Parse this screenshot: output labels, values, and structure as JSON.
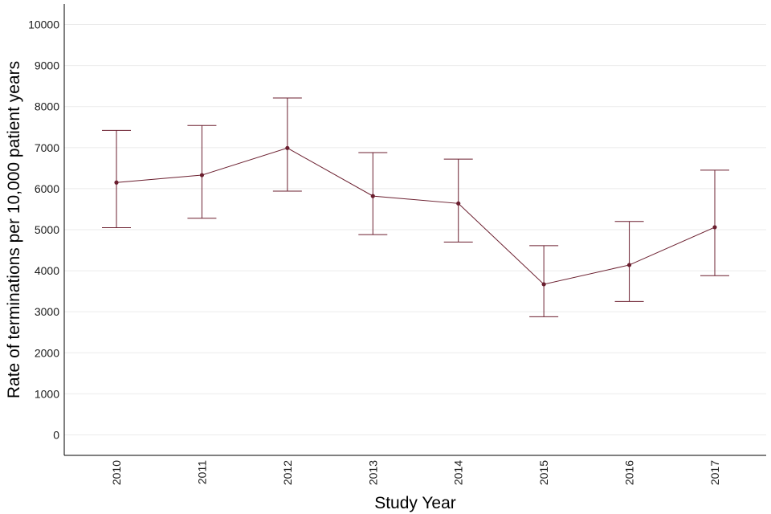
{
  "chart_data": {
    "type": "line",
    "title": "",
    "xlabel": "Study Year",
    "ylabel": "Rate of terminations per 10,000 patient years",
    "categories": [
      "2010",
      "2011",
      "2012",
      "2013",
      "2014",
      "2015",
      "2016",
      "2017"
    ],
    "series": [
      {
        "name": "Rate",
        "values": [
          6150,
          6330,
          6990,
          5820,
          5640,
          3670,
          4140,
          5060
        ],
        "lower": [
          5050,
          5280,
          5940,
          4880,
          4700,
          2880,
          3250,
          3880
        ],
        "upper": [
          7420,
          7540,
          8210,
          6880,
          6720,
          4610,
          5200,
          6450
        ]
      }
    ],
    "yticks": [
      "0",
      "1000",
      "2000",
      "3000",
      "4000",
      "5000",
      "6000",
      "7000",
      "8000",
      "9000",
      "10000"
    ],
    "ylim": [
      -500,
      10500
    ],
    "grid": true,
    "color": "#6b1f2f"
  }
}
